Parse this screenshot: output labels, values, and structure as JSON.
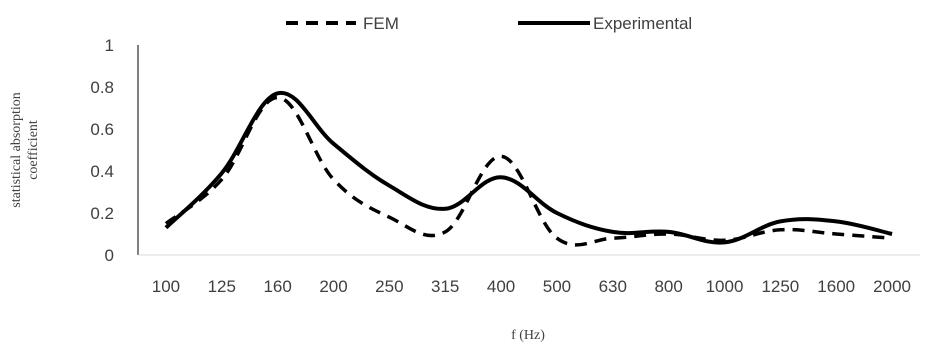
{
  "chart_data": {
    "type": "line",
    "xlabel": "f (Hz)",
    "ylabel_lines": [
      "statistical absorption",
      "coefficient"
    ],
    "categories": [
      "100",
      "125",
      "160",
      "200",
      "250",
      "315",
      "400",
      "500",
      "630",
      "800",
      "1000",
      "1250",
      "1600",
      "2000"
    ],
    "ylim": [
      0,
      1
    ],
    "yticks": [
      0,
      0.2,
      0.4,
      0.6,
      0.8,
      1
    ],
    "ytick_labels": [
      "0",
      "0.2",
      "0.4",
      "0.6",
      "0.8",
      "1"
    ],
    "grid": false,
    "legend_position": "top",
    "series": [
      {
        "name": "FEM",
        "style": "dashed",
        "color": "#000000",
        "values": [
          0.15,
          0.36,
          0.75,
          0.36,
          0.18,
          0.11,
          0.47,
          0.08,
          0.08,
          0.1,
          0.07,
          0.12,
          0.1,
          0.08
        ]
      },
      {
        "name": "Experimental",
        "style": "solid",
        "color": "#000000",
        "values": [
          0.13,
          0.39,
          0.77,
          0.53,
          0.33,
          0.22,
          0.37,
          0.2,
          0.11,
          0.11,
          0.06,
          0.16,
          0.16,
          0.1
        ]
      }
    ]
  }
}
